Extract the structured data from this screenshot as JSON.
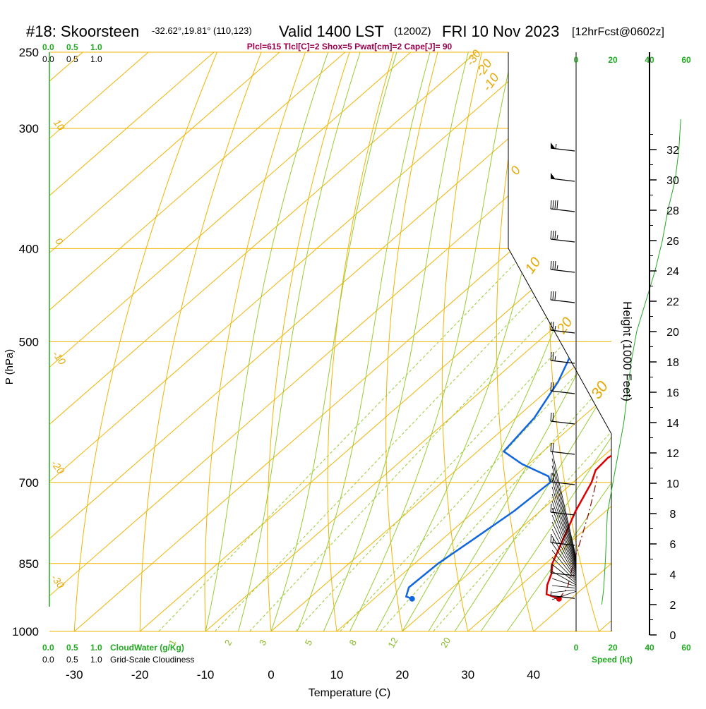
{
  "header": {
    "station": "#18: Skoorsteen",
    "coords": "-32.62°,19.81° (110,123)",
    "valid": "Valid 1400 LST",
    "utc": "(1200Z)",
    "date": "FRI 10 Nov 2023",
    "forecast": "[12hrFcst@0602z]",
    "params": "Plcl=615 Tlcl[C]=2 Shox=5 Pwat[cm]=2 Cape[J]= 90"
  },
  "axes": {
    "ylabel": "P (hPa)",
    "xlabel": "Temperature (C)",
    "pressure_ticks": [
      "250",
      "300",
      "400",
      "500",
      "700",
      "850",
      "1000"
    ],
    "temp_ticks": [
      "-30",
      "-20",
      "-10",
      "0",
      "10",
      "20",
      "30",
      "40"
    ],
    "height_label": "Height (1000 Feet)",
    "height_ticks": [
      "0",
      "2",
      "4",
      "6",
      "8",
      "10",
      "12",
      "14",
      "16",
      "18",
      "20",
      "22",
      "24",
      "26",
      "28",
      "30",
      "32"
    ],
    "speed_ticks": [
      "0",
      "20",
      "40",
      "60"
    ],
    "speed_label": "Speed (kt)"
  },
  "cloud_scale": {
    "top_green": [
      "0.0",
      "0.5",
      "1.0"
    ],
    "top_black": [
      "0.0",
      "0.5",
      "1.0"
    ],
    "bottom_green": [
      "0.0",
      "0.5",
      "1.0"
    ],
    "bottom_black": [
      "0.0",
      "0.5",
      "1.0"
    ],
    "cloudwater_label": "CloudWater (g/Kg)",
    "cloudiness_label": "Grid-Scale Cloudiness"
  },
  "isotherm_labels": [
    "-30",
    "-20",
    "-10",
    "0",
    "10",
    "20",
    "30"
  ],
  "dry_adiabat_labels": [
    "10",
    "0",
    "-10",
    "-20",
    "-30"
  ],
  "mixing_ratio_labels": [
    "1",
    "2",
    "3",
    "5",
    "8",
    "12",
    "20"
  ],
  "colors": {
    "temperature": "#dd0000",
    "dewpoint": "#1166dd",
    "isobar": "#f0b400",
    "dry_adiabat": "#f0b400",
    "moist_adiabat": "#99cc33",
    "mixing_ratio": "#99cc33",
    "green_axis": "#22aa22",
    "parcel": "#880000"
  },
  "chart_data": {
    "type": "line",
    "title": "#18: Skoorsteen Valid 1400 LST (1200Z) FRI 10 Nov 2023 [12hrFcst@0602z]",
    "xlabel": "Temperature (C)",
    "ylabel": "P (hPa)",
    "xlim": [
      -30,
      40
    ],
    "ylim": [
      1000,
      250
    ],
    "pressure_levels": [
      250,
      300,
      400,
      500,
      700,
      850,
      1000
    ],
    "series": [
      {
        "name": "temperature",
        "pressure": [
          925,
          915,
          895,
          870,
          850,
          800,
          750,
          700,
          680,
          660,
          640,
          600,
          550,
          500,
          450,
          400,
          350,
          300,
          275,
          250
        ],
        "temp": [
          38.2,
          35.5,
          34.0,
          32.6,
          31.0,
          28.3,
          25.4,
          22.8,
          21.3,
          21.0,
          22.0,
          20.5,
          17.9,
          15.1,
          11.6,
          7.5,
          2.8,
          -2.4,
          -5.2,
          -7.7
        ]
      },
      {
        "name": "dewpoint",
        "pressure": [
          925,
          920,
          900,
          850,
          800,
          750,
          700,
          690,
          670,
          650,
          600,
          550,
          500,
          450,
          400,
          370,
          340,
          320,
          300,
          280,
          250
        ],
        "temp": [
          15.8,
          14.5,
          13.3,
          13.6,
          14.8,
          16.0,
          16.5,
          15.2,
          9.0,
          4.0,
          2.8,
          0.1,
          -4.0,
          -11.8,
          -14.8,
          -13.5,
          -10.5,
          -10.7,
          -12.6,
          -16.7,
          -24.8
        ]
      },
      {
        "name": "parcel",
        "pressure": [
          925,
          900,
          850,
          800,
          750,
          700,
          690
        ],
        "temp": [
          38.2,
          37.5,
          34.2,
          31.0,
          27.5,
          23.5,
          22.6
        ]
      }
    ],
    "surface_points": [
      {
        "name": "surface temperature",
        "pressure": 925,
        "temp": 38.2
      },
      {
        "name": "surface dewpoint",
        "pressure": 925,
        "temp": 15.8
      }
    ],
    "wind_profile": {
      "height_kft": [
        2.5,
        4,
        6,
        8,
        10,
        12,
        14,
        16,
        18,
        20,
        22,
        24,
        26,
        28,
        30,
        32
      ],
      "speed_kt": [
        8,
        12,
        15,
        18,
        20,
        20,
        20,
        20,
        25,
        25,
        30,
        35,
        35,
        40,
        50,
        55
      ]
    },
    "speed_profile": {
      "height_kft": [
        2,
        3,
        5,
        8,
        10,
        12,
        14,
        16,
        18,
        20,
        22,
        24,
        26,
        28,
        30,
        32,
        34
      ],
      "speed_kt": [
        14,
        15,
        16,
        17,
        20,
        23,
        26,
        28,
        30,
        33,
        38,
        43,
        47,
        50,
        54,
        56,
        57
      ]
    }
  }
}
